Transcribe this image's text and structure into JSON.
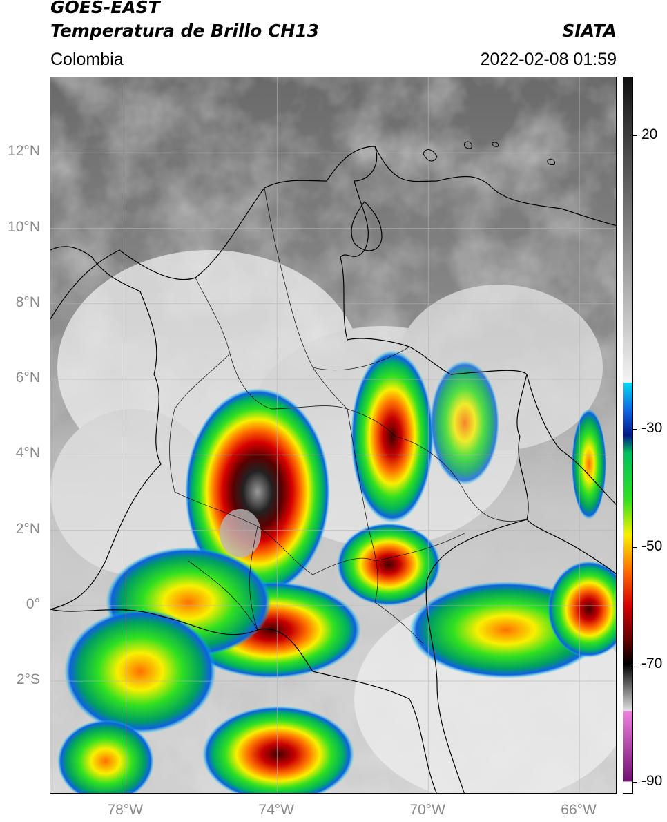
{
  "header": {
    "satellite": "GOES-EAST",
    "product": "Temperatura de Brillo CH13",
    "region": "Colombia",
    "organization": "SIATA",
    "timestamp": "2022-02-08 01:59"
  },
  "map": {
    "lon_range": [
      -80,
      -65
    ],
    "lat_range": [
      -5,
      14
    ],
    "lat_ticks": [
      {
        "value": 12,
        "label": "12°N"
      },
      {
        "value": 10,
        "label": "10°N"
      },
      {
        "value": 8,
        "label": "8°N"
      },
      {
        "value": 6,
        "label": "6°N"
      },
      {
        "value": 4,
        "label": "4°N"
      },
      {
        "value": 2,
        "label": "2°N"
      },
      {
        "value": 0,
        "label": "0°"
      },
      {
        "value": -2,
        "label": "2°S"
      }
    ],
    "lon_ticks": [
      {
        "value": -78,
        "label": "78°W"
      },
      {
        "value": -74,
        "label": "74°W"
      },
      {
        "value": -70,
        "label": "70°W"
      },
      {
        "value": -66,
        "label": "66°W"
      }
    ],
    "grid": true
  },
  "colorbar": {
    "range": [
      -92,
      30
    ],
    "ticks": [
      {
        "value": 20,
        "label": "20"
      },
      {
        "value": -30,
        "label": "-30"
      },
      {
        "value": -50,
        "label": "-50"
      },
      {
        "value": -70,
        "label": "-70"
      },
      {
        "value": -90,
        "label": "-90"
      }
    ],
    "stops": [
      {
        "value": 30,
        "color": "#111111"
      },
      {
        "value": -22,
        "color": "#f4f4f4"
      },
      {
        "value": -22.1,
        "color": "#00d8f0"
      },
      {
        "value": -27,
        "color": "#1060e0"
      },
      {
        "value": -31,
        "color": "#001888"
      },
      {
        "value": -34,
        "color": "#00c060"
      },
      {
        "value": -42,
        "color": "#30e020"
      },
      {
        "value": -48,
        "color": "#f8f000"
      },
      {
        "value": -54,
        "color": "#ff7000"
      },
      {
        "value": -60,
        "color": "#d80000"
      },
      {
        "value": -66,
        "color": "#600000"
      },
      {
        "value": -70,
        "color": "#000000"
      },
      {
        "value": -78,
        "color": "#e0e0e0"
      },
      {
        "value": -78.1,
        "color": "#f080e0"
      },
      {
        "value": -90,
        "color": "#701070"
      },
      {
        "value": -90.1,
        "color": "#ffffff"
      }
    ]
  }
}
